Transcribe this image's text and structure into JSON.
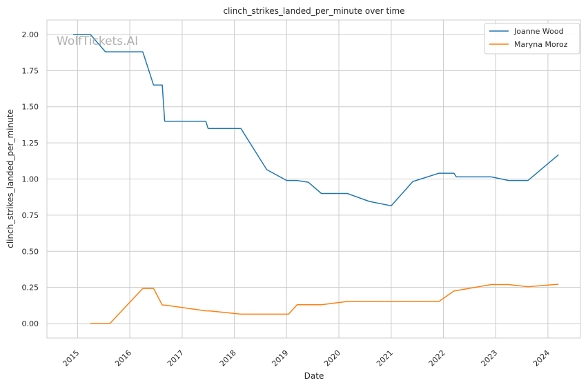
{
  "chart_data": {
    "type": "line",
    "title": "clinch_strikes_landed_per_minute over time",
    "xlabel": "Date",
    "ylabel": "clinch_strikes_landed_per_minute",
    "watermark": "WolfTickets.AI",
    "xlim": [
      "2014-06-01",
      "2024-08-15"
    ],
    "ylim": [
      -0.1,
      2.1
    ],
    "grid": true,
    "legend_position": "top-right",
    "x_ticks": [
      "2015",
      "2016",
      "2017",
      "2018",
      "2019",
      "2020",
      "2021",
      "2022",
      "2023",
      "2024"
    ],
    "y_ticks": [
      "0.00",
      "0.25",
      "0.50",
      "0.75",
      "1.00",
      "1.25",
      "1.50",
      "1.75",
      "2.00"
    ],
    "series": [
      {
        "name": "Joanne Wood",
        "color": "#1f77b4",
        "points": [
          [
            "2014-12-01",
            2.0
          ],
          [
            "2015-04-01",
            2.0
          ],
          [
            "2015-07-15",
            1.88
          ],
          [
            "2016-04-01",
            1.88
          ],
          [
            "2016-06-15",
            1.65
          ],
          [
            "2016-08-15",
            1.65
          ],
          [
            "2016-09-01",
            1.4
          ],
          [
            "2017-06-15",
            1.4
          ],
          [
            "2017-07-01",
            1.35
          ],
          [
            "2018-02-15",
            1.35
          ],
          [
            "2018-08-15",
            1.065
          ],
          [
            "2019-01-01",
            0.99
          ],
          [
            "2019-03-15",
            0.99
          ],
          [
            "2019-06-01",
            0.978
          ],
          [
            "2019-09-01",
            0.9
          ],
          [
            "2020-03-01",
            0.9
          ],
          [
            "2020-08-01",
            0.845
          ],
          [
            "2021-01-01",
            0.815
          ],
          [
            "2021-06-01",
            0.983
          ],
          [
            "2021-12-01",
            1.04
          ],
          [
            "2022-03-15",
            1.04
          ],
          [
            "2022-04-01",
            1.015
          ],
          [
            "2022-12-01",
            1.015
          ],
          [
            "2023-04-01",
            0.99
          ],
          [
            "2023-08-15",
            0.99
          ],
          [
            "2024-03-15",
            1.168
          ]
        ]
      },
      {
        "name": "Maryna Moroz",
        "color": "#ff7f0e",
        "points": [
          [
            "2015-04-01",
            0.0
          ],
          [
            "2015-08-15",
            0.0
          ],
          [
            "2016-04-01",
            0.243
          ],
          [
            "2016-06-15",
            0.243
          ],
          [
            "2016-08-15",
            0.128
          ],
          [
            "2016-09-01",
            0.128
          ],
          [
            "2017-06-15",
            0.088
          ],
          [
            "2017-07-15",
            0.087
          ],
          [
            "2018-02-15",
            0.065
          ],
          [
            "2019-01-15",
            0.065
          ],
          [
            "2019-03-15",
            0.13
          ],
          [
            "2019-09-01",
            0.13
          ],
          [
            "2020-03-01",
            0.153
          ],
          [
            "2021-12-01",
            0.153
          ],
          [
            "2022-03-15",
            0.225
          ],
          [
            "2022-12-01",
            0.27
          ],
          [
            "2023-04-01",
            0.27
          ],
          [
            "2023-08-15",
            0.255
          ],
          [
            "2024-03-15",
            0.272
          ]
        ]
      }
    ]
  }
}
